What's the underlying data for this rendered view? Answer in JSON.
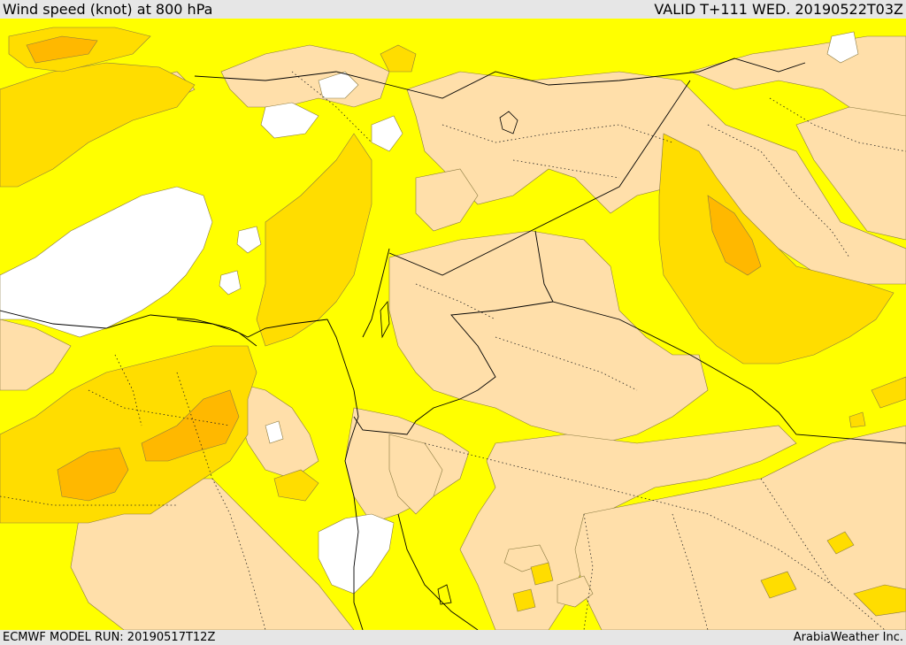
{
  "header": {
    "title": "Wind speed (knot) at 800 hPa",
    "valid": "VALID T+111 WED. 20190522T03Z"
  },
  "footer": {
    "model_run": "ECMWF MODEL RUN: 20190517T12Z",
    "credit": "ArabiaWeather Inc."
  },
  "colors": {
    "band_lowest": "#ffffff",
    "band_low": "#ffdfaa",
    "band_mid": "#ffff00",
    "band_high": "#ffdd00",
    "band_highest": "#ffb800",
    "header_bg": "#e6e6e6"
  }
}
